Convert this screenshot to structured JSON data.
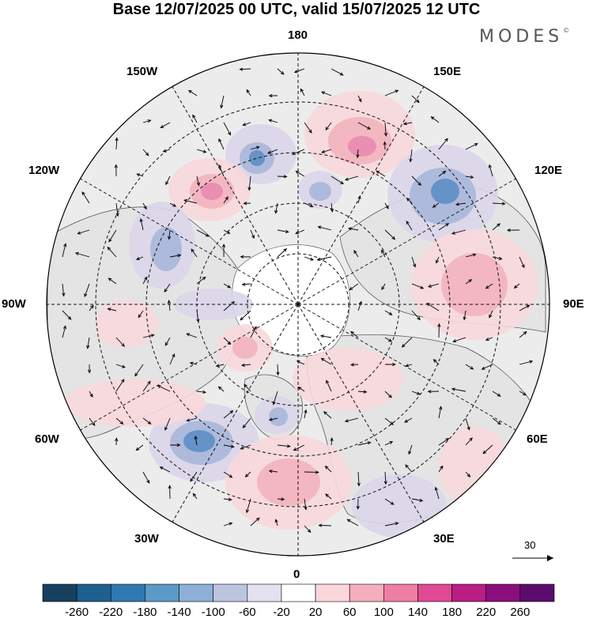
{
  "title": "Base 12/07/2025 00 UTC, valid 15/07/2025 12 UTC",
  "brand": "MODES",
  "brand_mark": "©",
  "longitude_labels": {
    "top": "180",
    "bottom": "0",
    "left": "90W",
    "right": "90E",
    "upper_left_1": "150W",
    "upper_left_2": "120W",
    "upper_right_1": "150E",
    "upper_right_2": "120E",
    "lower_left_1": "60W",
    "lower_left_2": "30W",
    "lower_right_1": "60E",
    "lower_right_2": "30E"
  },
  "vector_scale": {
    "label": "30"
  },
  "colorbar": {
    "labels": [
      "-260",
      "-220",
      "-180",
      "-140",
      "-100",
      "-60",
      "-20",
      "20",
      "60",
      "100",
      "140",
      "180",
      "220",
      "260"
    ],
    "colors": [
      "#17405f",
      "#1d5f8f",
      "#3178b3",
      "#5a99c8",
      "#8eb0d6",
      "#bcc4e0",
      "#e4e2f0",
      "#ffffff",
      "#fbd7dc",
      "#f5aebd",
      "#ee7fa3",
      "#e04a94",
      "#b81e84",
      "#8a0f7c",
      "#5b0b6c"
    ]
  },
  "map_colors": {
    "land": "#e8e8e8",
    "ocean": "#ffffff",
    "neg_light": "#dad6ea",
    "neg_mid": "#a9b7da",
    "neg_dark": "#5d8fc4",
    "pos_light": "#f8d8dc",
    "pos_mid": "#f2b2be",
    "pos_dark": "#e98bb0"
  }
}
